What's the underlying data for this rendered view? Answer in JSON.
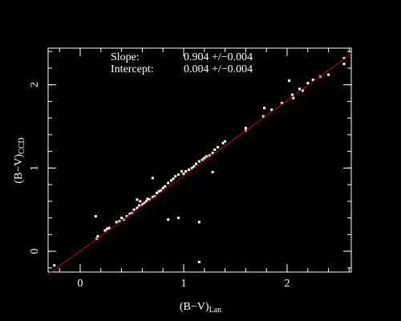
{
  "chart_data": {
    "type": "scatter",
    "x_label": "(B−V)",
    "x_label_sub": "Lan",
    "y_label": "(B−V)",
    "y_label_sub": "CCD",
    "annotations": [
      {
        "label": "Slope:",
        "text": "0.904 +/−0.004"
      },
      {
        "label": "Intercept:",
        "text": "0.004 +/−0.004"
      }
    ],
    "fit_line": {
      "slope": 0.904,
      "intercept": 0.004,
      "color": "#cc0000"
    },
    "xlim": [
      -0.31,
      2.62
    ],
    "ylim": [
      -0.25,
      2.44
    ],
    "xticks": [
      0,
      1,
      2
    ],
    "yticks": [
      0,
      1,
      2
    ],
    "minor_tick_step": 0.2,
    "color": "#ffffff",
    "x": [
      -0.25,
      0.16,
      0.17,
      0.24,
      0.26,
      0.28,
      0.35,
      0.38,
      0.4,
      0.42,
      0.45,
      0.48,
      0.5,
      0.52,
      0.55,
      0.57,
      0.58,
      0.6,
      0.62,
      0.64,
      0.65,
      0.67,
      0.7,
      0.72,
      0.74,
      0.76,
      0.78,
      0.8,
      0.82,
      0.85,
      0.88,
      0.9,
      0.92,
      0.95,
      0.98,
      1.0,
      1.02,
      1.05,
      1.08,
      1.1,
      1.12,
      1.15,
      1.18,
      1.2,
      1.22,
      1.25,
      1.28,
      1.3,
      1.33,
      1.38,
      1.4,
      1.6,
      1.6,
      1.77,
      1.85,
      1.95,
      2.05,
      2.06,
      2.12,
      2.15,
      2.2,
      2.25,
      2.32,
      2.4,
      2.55,
      2.55,
      0.15,
      0.85,
      0.95,
      1.15,
      1.15,
      0.7,
      1.28,
      0.55,
      1.78,
      2.02
    ],
    "y": [
      -0.17,
      0.15,
      0.18,
      0.25,
      0.27,
      0.28,
      0.35,
      0.36,
      0.4,
      0.38,
      0.42,
      0.45,
      0.46,
      0.5,
      0.52,
      0.55,
      0.6,
      0.56,
      0.58,
      0.6,
      0.63,
      0.62,
      0.65,
      0.66,
      0.7,
      0.72,
      0.73,
      0.76,
      0.78,
      0.82,
      0.85,
      0.87,
      0.9,
      0.92,
      0.96,
      0.93,
      0.96,
      0.98,
      1.0,
      1.02,
      1.05,
      1.08,
      1.1,
      1.12,
      1.14,
      1.15,
      1.18,
      1.22,
      1.25,
      1.3,
      1.32,
      1.48,
      1.45,
      1.62,
      1.7,
      1.78,
      1.88,
      1.84,
      1.95,
      1.93,
      2.02,
      2.06,
      2.1,
      2.12,
      2.32,
      2.25,
      0.42,
      0.38,
      0.4,
      -0.13,
      0.35,
      0.88,
      0.95,
      0.62,
      1.72,
      2.05
    ]
  }
}
